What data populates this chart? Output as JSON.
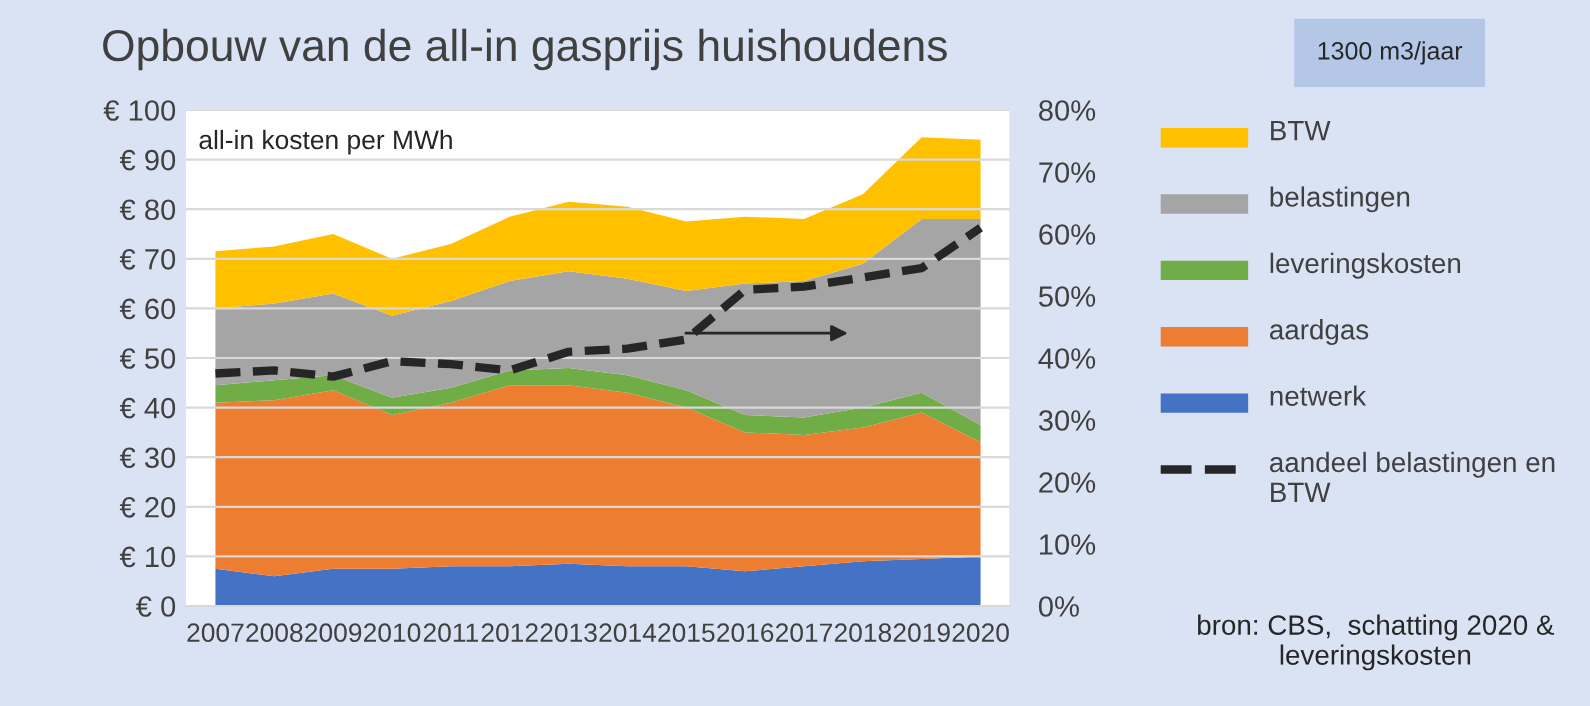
{
  "chart_data": {
    "type": "area",
    "stacked": true,
    "title": "Opbouw van de all-in gasprijs huishoudens",
    "annotations": [
      "1300 m3/jaar",
      "all-in kosten per MWh",
      "bron: CBS,  schatting 2020 & leveringskosten"
    ],
    "categories": [
      "2007",
      "2008",
      "2009",
      "2010",
      "2011",
      "2012",
      "2013",
      "2014",
      "2015",
      "2016",
      "2017",
      "2018",
      "2019",
      "2020"
    ],
    "series": [
      {
        "name": "netwerk",
        "color": "#4472c4",
        "values": [
          7.5,
          6,
          7.5,
          7.5,
          8,
          8,
          8.5,
          8,
          8,
          7,
          8,
          9,
          9.5,
          10
        ]
      },
      {
        "name": "aardgas",
        "color": "#ed7d31",
        "values": [
          33.5,
          35.5,
          36,
          31,
          33,
          36.5,
          36,
          35,
          32,
          28,
          26.5,
          27,
          29.5,
          23
        ]
      },
      {
        "name": "leveringskosten",
        "color": "#70ad47",
        "values": [
          3.5,
          4,
          3,
          3.5,
          3,
          3,
          3.5,
          3.5,
          3.5,
          3.5,
          3.5,
          4,
          4,
          3.5
        ]
      },
      {
        "name": "belastingen",
        "color": "#a5a5a5",
        "values": [
          15.5,
          15.5,
          16.5,
          16.5,
          17.5,
          18,
          19.5,
          19.5,
          20,
          26.5,
          27.5,
          29,
          35,
          41.5
        ]
      },
      {
        "name": "BTW",
        "color": "#ffc000",
        "values": [
          11.5,
          11.5,
          12,
          11.5,
          11.5,
          13,
          14,
          14.5,
          14,
          13.5,
          12.5,
          14,
          16.5,
          16
        ]
      },
      {
        "name": "aandeel belastingen en BTW",
        "type": "line",
        "axis": "y2",
        "color": "#262626",
        "line_style": "dashed",
        "values": [
          37.5,
          38,
          37,
          39.5,
          39,
          38,
          41,
          41.5,
          43,
          51,
          51.5,
          53,
          54.5,
          61
        ]
      }
    ],
    "ylim": [
      0,
      100
    ],
    "yticks": [
      {
        "value": 0,
        "label": "€ 0"
      },
      {
        "value": 10,
        "label": "€ 10"
      },
      {
        "value": 20,
        "label": "€ 20"
      },
      {
        "value": 30,
        "label": "€ 30"
      },
      {
        "value": 40,
        "label": "€ 40"
      },
      {
        "value": 50,
        "label": "€ 50"
      },
      {
        "value": 60,
        "label": "€ 60"
      },
      {
        "value": 70,
        "label": "€ 70"
      },
      {
        "value": 80,
        "label": "€ 80"
      },
      {
        "value": 90,
        "label": "€ 90"
      },
      {
        "value": 100,
        "label": "€ 100"
      }
    ],
    "y2lim": [
      0,
      80
    ],
    "y2ticks": [
      {
        "value": 0,
        "label": "0%"
      },
      {
        "value": 10,
        "label": "10%"
      },
      {
        "value": 20,
        "label": "20%"
      },
      {
        "value": 30,
        "label": "30%"
      },
      {
        "value": 40,
        "label": "40%"
      },
      {
        "value": 50,
        "label": "50%"
      },
      {
        "value": 60,
        "label": "60%"
      },
      {
        "value": 70,
        "label": "70%"
      },
      {
        "value": 80,
        "label": "80%"
      }
    ],
    "grid": "y",
    "legend": "right"
  }
}
